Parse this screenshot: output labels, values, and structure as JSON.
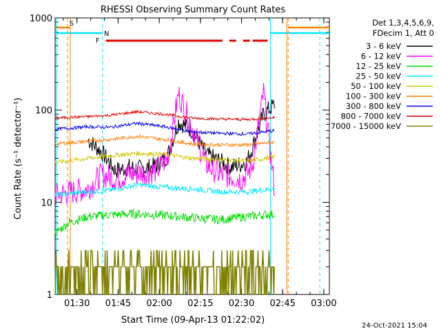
{
  "chart_data": {
    "type": "line",
    "title": "RHESSI Observing Summary Count Rates",
    "xlabel": "Start Time (09-Apr-13 01:22:02)",
    "ylabel": "Count Rate (s⁻¹ detector⁻¹)",
    "y_scale": "log",
    "ylim": [
      1,
      1000
    ],
    "xlim_minutes": [
      0,
      100
    ],
    "x_ticks": [
      "01:30",
      "01:45",
      "02:00",
      "02:15",
      "02:30",
      "02:45",
      "03:00"
    ],
    "y_ticks": [
      "1",
      "10",
      "100",
      "1000"
    ],
    "legend_header": [
      "Det 1,3,4,5,6,9,",
      "FDecim 1, Att 0"
    ],
    "legend_position": "right, outside plot",
    "timestamp": "24-Oct-2021 15:04",
    "flags": [
      {
        "label": "S",
        "color": "#ff7f00"
      },
      {
        "label": "N",
        "color": "#00e5ff"
      },
      {
        "label": "F",
        "color": "#e00000"
      }
    ],
    "series": [
      {
        "name": "3 - 6 keV",
        "color": "#000000",
        "x": [
          12,
          17,
          22,
          27,
          32,
          37,
          41,
          45,
          50,
          55,
          60,
          64,
          68,
          70,
          72,
          76,
          80
        ],
        "y": [
          48,
          35,
          22,
          24,
          23,
          25,
          32,
          75,
          60,
          33,
          28,
          24,
          26,
          28,
          40,
          90,
          115
        ]
      },
      {
        "name": "6 - 12 keV",
        "color": "#ff00ff",
        "x": [
          0,
          12,
          17,
          22,
          27,
          32,
          37,
          41,
          45,
          50,
          55,
          60,
          64,
          68,
          70,
          72,
          76,
          80
        ],
        "y": [
          12,
          14,
          20,
          18,
          20,
          21,
          22,
          30,
          150,
          65,
          26,
          20,
          19,
          18,
          20,
          26,
          155,
          14
        ]
      },
      {
        "name": "12 - 25 keV",
        "color": "#00dd00",
        "x": [
          0,
          5,
          12,
          20,
          30,
          40,
          50,
          60,
          70,
          80
        ],
        "y": [
          4.6,
          6,
          7,
          7.3,
          7.5,
          7.2,
          6.8,
          6.5,
          7,
          7.5
        ]
      },
      {
        "name": "25 - 50 keV",
        "color": "#00e5ff",
        "x": [
          0,
          12,
          20,
          30,
          40,
          50,
          60,
          70,
          80
        ],
        "y": [
          12,
          13,
          13.5,
          15.5,
          14.5,
          14,
          13,
          13,
          14
        ]
      },
      {
        "name": "50 - 100 keV",
        "color": "#d4c400",
        "x": [
          0,
          12,
          20,
          30,
          40,
          50,
          60,
          70,
          80
        ],
        "y": [
          27,
          30,
          32,
          34,
          33,
          30,
          29,
          28,
          31
        ]
      },
      {
        "name": "100 - 300 keV",
        "color": "#ff7f00",
        "x": [
          0,
          12,
          20,
          30,
          40,
          50,
          60,
          70,
          80
        ],
        "y": [
          43,
          46,
          48,
          52,
          48,
          43,
          42,
          42,
          45
        ]
      },
      {
        "name": "300 - 800 keV",
        "color": "#0000ee",
        "x": [
          0,
          12,
          20,
          30,
          40,
          50,
          60,
          70,
          80
        ],
        "y": [
          62,
          66,
          65,
          72,
          66,
          58,
          56,
          55,
          60
        ]
      },
      {
        "name": "800 - 7000 keV",
        "color": "#e00000",
        "x": [
          0,
          12,
          20,
          30,
          40,
          50,
          60,
          70,
          80
        ],
        "y": [
          82,
          85,
          88,
          96,
          90,
          82,
          80,
          79,
          83
        ]
      },
      {
        "name": "7000 - 15000 keV",
        "color": "#808000",
        "x": [
          0,
          12,
          20,
          30,
          40,
          50,
          60,
          70,
          80
        ],
        "y": [
          2,
          2,
          2,
          2.5,
          2,
          2,
          2,
          2,
          2
        ]
      }
    ]
  }
}
